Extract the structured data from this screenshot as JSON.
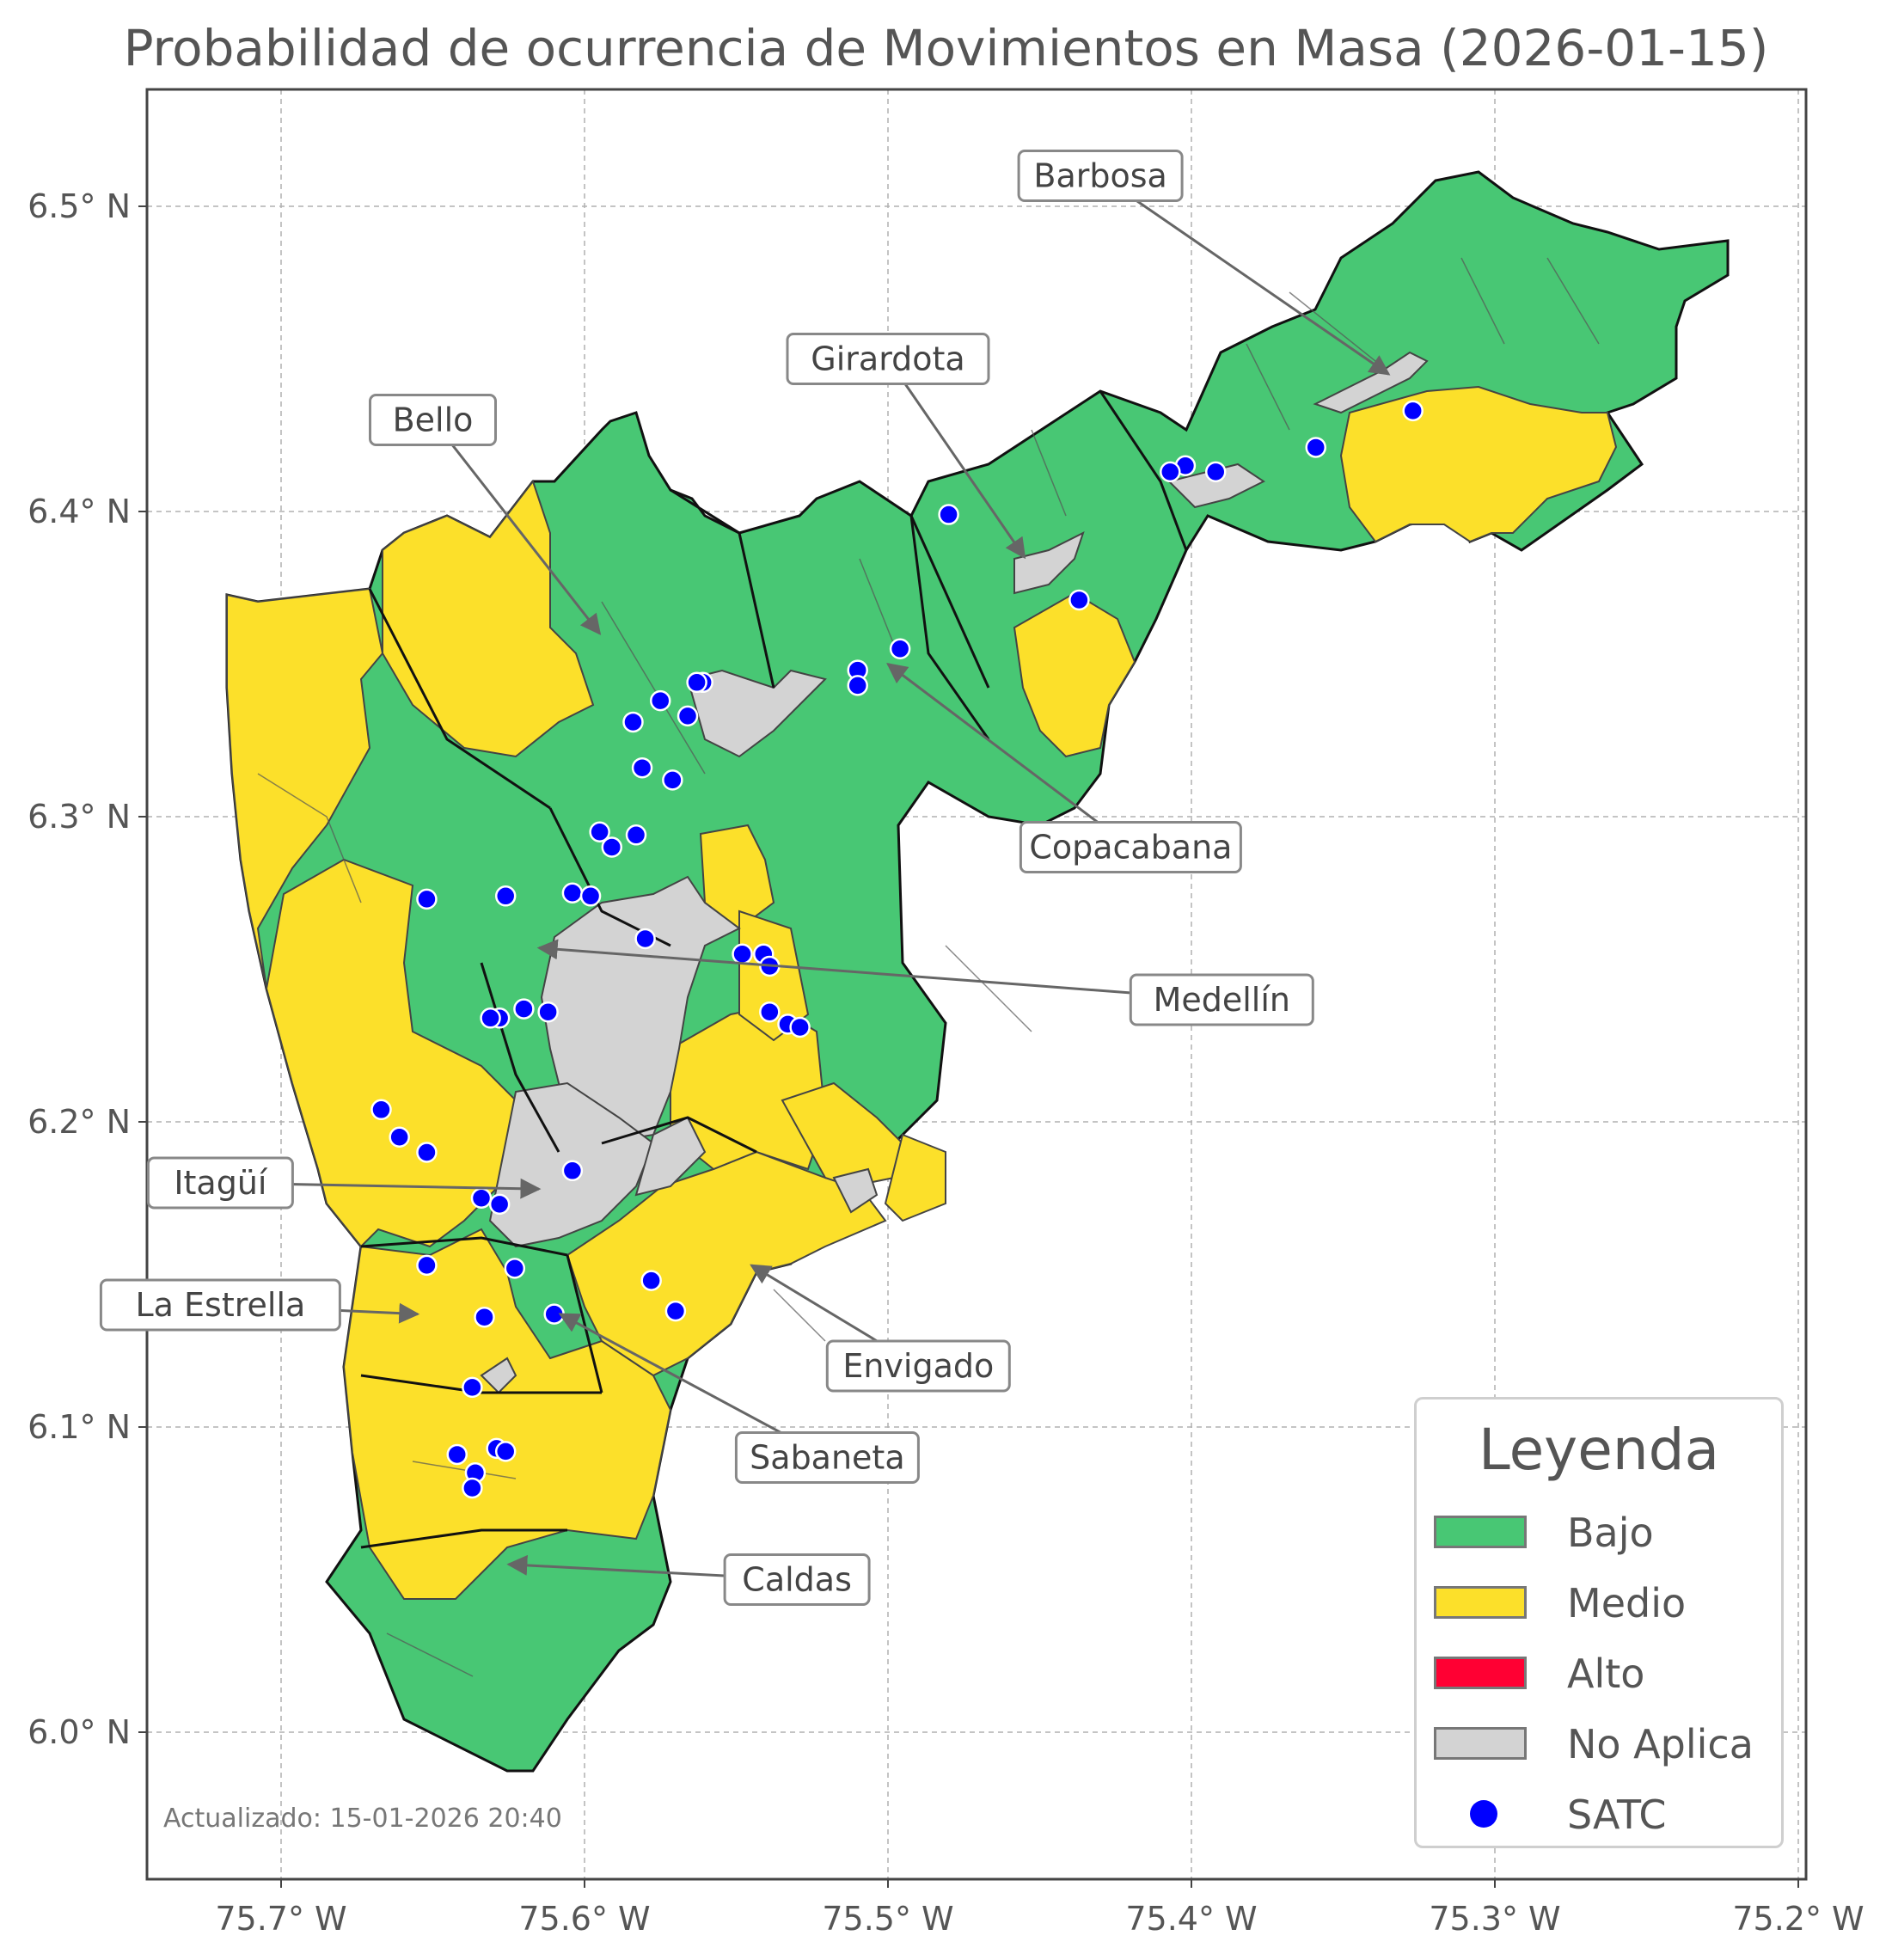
{
  "title": "Probabilidad de ocurrencia de Movimientos en Masa (2026-01-15)",
  "updated_text": "Actualizado: 15-01-2026 20:40",
  "axes": {
    "x_ticks": [
      "75.7° W",
      "75.6° W",
      "75.5° W",
      "75.4° W",
      "75.3° W",
      "75.2° W"
    ],
    "y_ticks": [
      "6.5° N",
      "6.4° N",
      "6.3° N",
      "6.2° N",
      "6.1° N",
      "6.0° N"
    ]
  },
  "colors": {
    "bajo": "#48c774",
    "medio": "#fce02a",
    "alto": "#ff0033",
    "no_aplica": "#d3d3d3",
    "satc": "#0000ff",
    "border": "#111111",
    "inner": "#555555"
  },
  "municipalities": [
    {
      "name": "Barbosa",
      "label_lon": -75.43,
      "label_lat": 6.51,
      "target_lon": -75.335,
      "target_lat": 6.445
    },
    {
      "name": "Girardota",
      "label_lon": -75.5,
      "label_lat": 6.45,
      "target_lon": -75.455,
      "target_lat": 6.385
    },
    {
      "name": "Bello",
      "label_lon": -75.65,
      "label_lat": 6.43,
      "target_lon": -75.595,
      "target_lat": 6.36
    },
    {
      "name": "Copacabana",
      "label_lon": -75.42,
      "label_lat": 6.29,
      "target_lon": -75.5,
      "target_lat": 6.35
    },
    {
      "name": "Medellín",
      "label_lon": -75.39,
      "label_lat": 6.24,
      "target_lon": -75.615,
      "target_lat": 6.257
    },
    {
      "name": "Itagüí",
      "label_lon": -75.72,
      "label_lat": 6.18,
      "target_lon": -75.615,
      "target_lat": 6.178
    },
    {
      "name": "La Estrella",
      "label_lon": -75.72,
      "label_lat": 6.14,
      "target_lon": -75.655,
      "target_lat": 6.137
    },
    {
      "name": "Envigado",
      "label_lon": -75.49,
      "label_lat": 6.12,
      "target_lon": -75.545,
      "target_lat": 6.153
    },
    {
      "name": "Sabaneta",
      "label_lon": -75.52,
      "label_lat": 6.09,
      "target_lon": -75.608,
      "target_lat": 6.137
    },
    {
      "name": "Caldas",
      "label_lon": -75.53,
      "label_lat": 6.05,
      "target_lon": -75.625,
      "target_lat": 6.055
    }
  ],
  "satc_stations": [
    {
      "lon": -75.327,
      "lat": 6.433
    },
    {
      "lon": -75.359,
      "lat": 6.421
    },
    {
      "lon": -75.392,
      "lat": 6.413
    },
    {
      "lon": -75.402,
      "lat": 6.415
    },
    {
      "lon": -75.407,
      "lat": 6.413
    },
    {
      "lon": -75.48,
      "lat": 6.399
    },
    {
      "lon": -75.437,
      "lat": 6.371
    },
    {
      "lon": -75.496,
      "lat": 6.355
    },
    {
      "lon": -75.51,
      "lat": 6.348
    },
    {
      "lon": -75.51,
      "lat": 6.343
    },
    {
      "lon": -75.561,
      "lat": 6.344
    },
    {
      "lon": -75.563,
      "lat": 6.344
    },
    {
      "lon": -75.575,
      "lat": 6.338
    },
    {
      "lon": -75.566,
      "lat": 6.333
    },
    {
      "lon": -75.584,
      "lat": 6.331
    },
    {
      "lon": -75.581,
      "lat": 6.316
    },
    {
      "lon": -75.571,
      "lat": 6.312
    },
    {
      "lon": -75.595,
      "lat": 6.295
    },
    {
      "lon": -75.583,
      "lat": 6.294
    },
    {
      "lon": -75.591,
      "lat": 6.29
    },
    {
      "lon": -75.652,
      "lat": 6.273
    },
    {
      "lon": -75.626,
      "lat": 6.274
    },
    {
      "lon": -75.604,
      "lat": 6.275
    },
    {
      "lon": -75.598,
      "lat": 6.274
    },
    {
      "lon": -75.58,
      "lat": 6.26
    },
    {
      "lon": -75.548,
      "lat": 6.255
    },
    {
      "lon": -75.541,
      "lat": 6.255
    },
    {
      "lon": -75.539,
      "lat": 6.251
    },
    {
      "lon": -75.539,
      "lat": 6.236
    },
    {
      "lon": -75.533,
      "lat": 6.232
    },
    {
      "lon": -75.529,
      "lat": 6.231
    },
    {
      "lon": -75.62,
      "lat": 6.237
    },
    {
      "lon": -75.612,
      "lat": 6.236
    },
    {
      "lon": -75.628,
      "lat": 6.234
    },
    {
      "lon": -75.631,
      "lat": 6.234
    },
    {
      "lon": -75.667,
      "lat": 6.204
    },
    {
      "lon": -75.661,
      "lat": 6.195
    },
    {
      "lon": -75.652,
      "lat": 6.19
    },
    {
      "lon": -75.604,
      "lat": 6.184
    },
    {
      "lon": -75.634,
      "lat": 6.175
    },
    {
      "lon": -75.628,
      "lat": 6.173
    },
    {
      "lon": -75.652,
      "lat": 6.153
    },
    {
      "lon": -75.623,
      "lat": 6.152
    },
    {
      "lon": -75.578,
      "lat": 6.148
    },
    {
      "lon": -75.57,
      "lat": 6.138
    },
    {
      "lon": -75.633,
      "lat": 6.136
    },
    {
      "lon": -75.61,
      "lat": 6.137
    },
    {
      "lon": -75.637,
      "lat": 6.113
    },
    {
      "lon": -75.642,
      "lat": 6.091
    },
    {
      "lon": -75.629,
      "lat": 6.093
    },
    {
      "lon": -75.626,
      "lat": 6.092
    },
    {
      "lon": -75.636,
      "lat": 6.085
    },
    {
      "lon": -75.637,
      "lat": 6.08
    }
  ],
  "legend": {
    "title": "Leyenda",
    "items": [
      {
        "label": "Bajo",
        "kind": "swatch",
        "color": "#48c774"
      },
      {
        "label": "Medio",
        "kind": "swatch",
        "color": "#fce02a"
      },
      {
        "label": "Alto",
        "kind": "swatch",
        "color": "#ff0033"
      },
      {
        "label": "No Aplica",
        "kind": "swatch",
        "color": "#d3d3d3"
      },
      {
        "label": "SATC",
        "kind": "dot",
        "color": "#0000ff"
      }
    ]
  }
}
